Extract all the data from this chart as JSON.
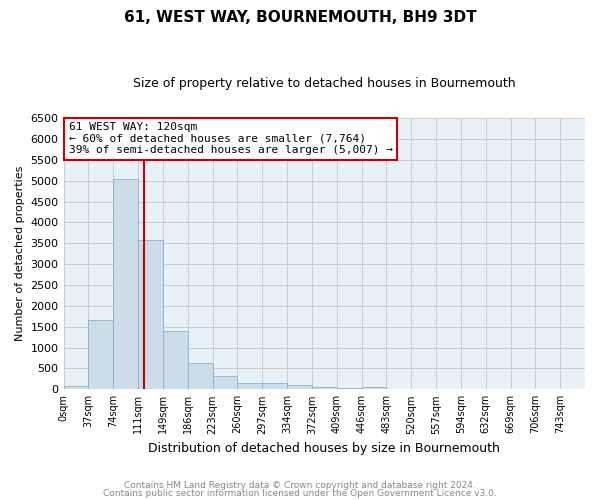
{
  "title": "61, WEST WAY, BOURNEMOUTH, BH9 3DT",
  "subtitle": "Size of property relative to detached houses in Bournemouth",
  "xlabel": "Distribution of detached houses by size in Bournemouth",
  "ylabel": "Number of detached properties",
  "bin_edges": [
    0,
    37,
    74,
    111,
    148,
    185,
    222,
    259,
    296,
    333,
    370,
    407,
    444,
    481,
    518,
    555,
    592,
    629,
    666,
    703,
    740,
    777
  ],
  "bar_heights": [
    75,
    1650,
    5050,
    3580,
    1400,
    620,
    310,
    160,
    150,
    100,
    55,
    40,
    65,
    0,
    0,
    0,
    0,
    0,
    0,
    0,
    0
  ],
  "bar_color": "#ccdce8",
  "bar_edge_color": "#7aaac8",
  "red_line_x": 120,
  "annotation_line1": "61 WEST WAY: 120sqm",
  "annotation_line2": "← 60% of detached houses are smaller (7,764)",
  "annotation_line3": "39% of semi-detached houses are larger (5,007) →",
  "annotation_box_color": "#ffffff",
  "annotation_box_edge_color": "#cc0000",
  "footnote1": "Contains HM Land Registry data © Crown copyright and database right 2024.",
  "footnote2": "Contains public sector information licensed under the Open Government Licence v3.0.",
  "ylim": [
    0,
    6500
  ],
  "yticks": [
    0,
    500,
    1000,
    1500,
    2000,
    2500,
    3000,
    3500,
    4000,
    4500,
    5000,
    5500,
    6000,
    6500
  ],
  "xlim_min": 0,
  "xlim_max": 777,
  "tick_labels": [
    "0sqm",
    "37sqm",
    "74sqm",
    "111sqm",
    "149sqm",
    "186sqm",
    "223sqm",
    "260sqm",
    "297sqm",
    "334sqm",
    "372sqm",
    "409sqm",
    "446sqm",
    "483sqm",
    "520sqm",
    "557sqm",
    "594sqm",
    "632sqm",
    "669sqm",
    "706sqm",
    "743sqm"
  ],
  "tick_positions": [
    0,
    37,
    74,
    111,
    148,
    185,
    222,
    259,
    296,
    333,
    370,
    407,
    444,
    481,
    518,
    555,
    592,
    629,
    666,
    703,
    740
  ],
  "background_color": "#ffffff",
  "grid_color": "#cccccc",
  "plot_bg_color": "#e8f0f8"
}
